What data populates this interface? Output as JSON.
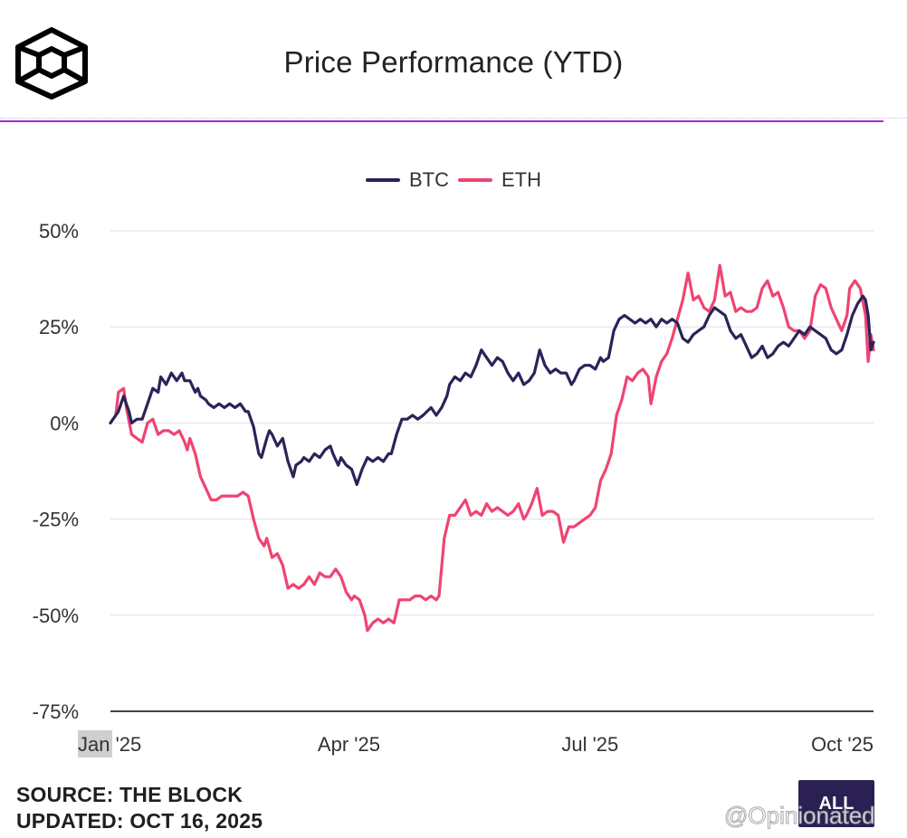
{
  "header": {
    "title": "Price Performance (YTD)"
  },
  "footer": {
    "source": "SOURCE: THE BLOCK",
    "updated": "UPDATED: OCT 16, 2025",
    "range_button": "ALL",
    "watermark": "@Opinionated"
  },
  "colors": {
    "btc": "#2b2358",
    "eth": "#ef4472",
    "accent": "#9b2be0",
    "grid": "#e9e9ef"
  },
  "chart_data": {
    "type": "line",
    "title": "Price Performance (YTD)",
    "xlabel": "",
    "ylabel": "",
    "ylim": [
      -75,
      50
    ],
    "yticks": [
      50,
      25,
      0,
      -25,
      -50,
      -75
    ],
    "ytick_labels": [
      "50%",
      "25%",
      "0%",
      "-25%",
      "-50%",
      "-75%"
    ],
    "x_range_days": [
      0,
      288
    ],
    "xticks": [
      {
        "day": 0,
        "label": "Jan '25"
      },
      {
        "day": 90,
        "label": "Apr '25"
      },
      {
        "day": 181,
        "label": "Jul '25"
      },
      {
        "day": 273,
        "label": "Oct '25"
      }
    ],
    "legend": {
      "position": "top-center",
      "entries": [
        "BTC",
        "ETH"
      ]
    },
    "grid": true,
    "series": [
      {
        "name": "BTC",
        "points": [
          [
            0,
            0
          ],
          [
            3,
            3
          ],
          [
            5,
            7
          ],
          [
            7,
            3
          ],
          [
            8,
            0
          ],
          [
            10,
            1
          ],
          [
            12,
            1
          ],
          [
            14,
            5
          ],
          [
            16,
            9
          ],
          [
            18,
            8
          ],
          [
            19,
            12
          ],
          [
            21,
            10
          ],
          [
            23,
            13
          ],
          [
            25,
            11
          ],
          [
            27,
            13
          ],
          [
            28,
            11
          ],
          [
            30,
            11
          ],
          [
            32,
            8
          ],
          [
            33,
            9
          ],
          [
            34,
            7
          ],
          [
            36,
            6
          ],
          [
            37,
            5
          ],
          [
            39,
            4
          ],
          [
            41,
            5
          ],
          [
            43,
            4
          ],
          [
            45,
            5
          ],
          [
            47,
            4
          ],
          [
            49,
            5
          ],
          [
            51,
            3
          ],
          [
            52,
            3
          ],
          [
            54,
            -1
          ],
          [
            56,
            -8
          ],
          [
            57,
            -9
          ],
          [
            59,
            -4
          ],
          [
            60,
            -2
          ],
          [
            61,
            -3
          ],
          [
            63,
            -6
          ],
          [
            65,
            -4
          ],
          [
            66,
            -7
          ],
          [
            67,
            -10
          ],
          [
            69,
            -14
          ],
          [
            70,
            -11
          ],
          [
            72,
            -10
          ],
          [
            73,
            -9
          ],
          [
            75,
            -10
          ],
          [
            77,
            -8
          ],
          [
            79,
            -9
          ],
          [
            81,
            -7
          ],
          [
            83,
            -6
          ],
          [
            84,
            -8
          ],
          [
            86,
            -11
          ],
          [
            87,
            -9
          ],
          [
            89,
            -11
          ],
          [
            91,
            -12
          ],
          [
            93,
            -16
          ],
          [
            95,
            -12
          ],
          [
            97,
            -9
          ],
          [
            99,
            -10
          ],
          [
            101,
            -9
          ],
          [
            103,
            -10
          ],
          [
            105,
            -8
          ],
          [
            106,
            -8
          ],
          [
            108,
            -3
          ],
          [
            110,
            1
          ],
          [
            112,
            1
          ],
          [
            114,
            2
          ],
          [
            116,
            1
          ],
          [
            118,
            2
          ],
          [
            121,
            4
          ],
          [
            123,
            2
          ],
          [
            125,
            4
          ],
          [
            127,
            7
          ],
          [
            128,
            10
          ],
          [
            130,
            12
          ],
          [
            132,
            11
          ],
          [
            134,
            13
          ],
          [
            136,
            12
          ],
          [
            138,
            15
          ],
          [
            140,
            19
          ],
          [
            142,
            17
          ],
          [
            144,
            15
          ],
          [
            146,
            17
          ],
          [
            148,
            16
          ],
          [
            150,
            13
          ],
          [
            152,
            11
          ],
          [
            154,
            13
          ],
          [
            156,
            10
          ],
          [
            158,
            11
          ],
          [
            160,
            13
          ],
          [
            162,
            19
          ],
          [
            164,
            15
          ],
          [
            166,
            13
          ],
          [
            168,
            14
          ],
          [
            170,
            13
          ],
          [
            172,
            13
          ],
          [
            174,
            10
          ],
          [
            175,
            11
          ],
          [
            177,
            14
          ],
          [
            179,
            15
          ],
          [
            181,
            15
          ],
          [
            183,
            14
          ],
          [
            185,
            17
          ],
          [
            186,
            16
          ],
          [
            188,
            17
          ],
          [
            190,
            24
          ],
          [
            192,
            27
          ],
          [
            194,
            28
          ],
          [
            196,
            27
          ],
          [
            198,
            26
          ],
          [
            200,
            27
          ],
          [
            202,
            26
          ],
          [
            204,
            27
          ],
          [
            206,
            25
          ],
          [
            208,
            27
          ],
          [
            210,
            26
          ],
          [
            212,
            27
          ],
          [
            214,
            26
          ],
          [
            216,
            22
          ],
          [
            218,
            21
          ],
          [
            220,
            23
          ],
          [
            222,
            24
          ],
          [
            224,
            25
          ],
          [
            226,
            28
          ],
          [
            228,
            30
          ],
          [
            230,
            29
          ],
          [
            232,
            28
          ],
          [
            234,
            24
          ],
          [
            236,
            22
          ],
          [
            238,
            23
          ],
          [
            240,
            20
          ],
          [
            242,
            17
          ],
          [
            244,
            18
          ],
          [
            246,
            20
          ],
          [
            248,
            17
          ],
          [
            250,
            18
          ],
          [
            252,
            20
          ],
          [
            254,
            21
          ],
          [
            256,
            20
          ],
          [
            258,
            22
          ],
          [
            260,
            24
          ],
          [
            262,
            23
          ],
          [
            264,
            25
          ],
          [
            266,
            24
          ],
          [
            268,
            23
          ],
          [
            270,
            22
          ],
          [
            272,
            19
          ],
          [
            274,
            18
          ],
          [
            276,
            19
          ],
          [
            278,
            23
          ],
          [
            280,
            28
          ],
          [
            282,
            31
          ],
          [
            284,
            33
          ],
          [
            285,
            32
          ],
          [
            286,
            28
          ],
          [
            287,
            19
          ],
          [
            288,
            21
          ]
        ]
      },
      {
        "name": "ETH",
        "points": [
          [
            0,
            0
          ],
          [
            2,
            2
          ],
          [
            3,
            8
          ],
          [
            5,
            9
          ],
          [
            6,
            4
          ],
          [
            8,
            -3
          ],
          [
            10,
            -4
          ],
          [
            12,
            -5
          ],
          [
            14,
            0
          ],
          [
            16,
            1
          ],
          [
            18,
            -3
          ],
          [
            20,
            -2
          ],
          [
            22,
            -2
          ],
          [
            24,
            -3
          ],
          [
            26,
            -2
          ],
          [
            28,
            -5
          ],
          [
            29,
            -7
          ],
          [
            30,
            -4
          ],
          [
            32,
            -8
          ],
          [
            34,
            -14
          ],
          [
            36,
            -17
          ],
          [
            38,
            -20
          ],
          [
            40,
            -20
          ],
          [
            42,
            -19
          ],
          [
            44,
            -19
          ],
          [
            46,
            -19
          ],
          [
            48,
            -19
          ],
          [
            50,
            -18
          ],
          [
            52,
            -19
          ],
          [
            54,
            -25
          ],
          [
            56,
            -30
          ],
          [
            58,
            -32
          ],
          [
            59,
            -30
          ],
          [
            61,
            -35
          ],
          [
            63,
            -34
          ],
          [
            65,
            -37
          ],
          [
            67,
            -43
          ],
          [
            69,
            -42
          ],
          [
            71,
            -43
          ],
          [
            73,
            -42
          ],
          [
            75,
            -40
          ],
          [
            77,
            -42
          ],
          [
            79,
            -39
          ],
          [
            81,
            -40
          ],
          [
            83,
            -40
          ],
          [
            85,
            -38
          ],
          [
            87,
            -40
          ],
          [
            89,
            -44
          ],
          [
            91,
            -46
          ],
          [
            92,
            -45
          ],
          [
            94,
            -46
          ],
          [
            96,
            -50
          ],
          [
            97,
            -54
          ],
          [
            99,
            -52
          ],
          [
            101,
            -51
          ],
          [
            103,
            -52
          ],
          [
            105,
            -51
          ],
          [
            107,
            -52
          ],
          [
            109,
            -46
          ],
          [
            111,
            -46
          ],
          [
            113,
            -46
          ],
          [
            115,
            -45
          ],
          [
            117,
            -45
          ],
          [
            119,
            -46
          ],
          [
            121,
            -45
          ],
          [
            123,
            -46
          ],
          [
            124,
            -45
          ],
          [
            126,
            -30
          ],
          [
            128,
            -24
          ],
          [
            130,
            -24
          ],
          [
            132,
            -22
          ],
          [
            134,
            -20
          ],
          [
            136,
            -24
          ],
          [
            138,
            -23
          ],
          [
            140,
            -24
          ],
          [
            142,
            -21
          ],
          [
            144,
            -23
          ],
          [
            146,
            -22
          ],
          [
            148,
            -23
          ],
          [
            150,
            -24
          ],
          [
            152,
            -23
          ],
          [
            154,
            -21
          ],
          [
            156,
            -25
          ],
          [
            157,
            -24
          ],
          [
            159,
            -21
          ],
          [
            161,
            -17
          ],
          [
            163,
            -24
          ],
          [
            165,
            -23
          ],
          [
            167,
            -23
          ],
          [
            169,
            -24
          ],
          [
            171,
            -31
          ],
          [
            173,
            -27
          ],
          [
            175,
            -27
          ],
          [
            177,
            -26
          ],
          [
            179,
            -25
          ],
          [
            181,
            -24
          ],
          [
            183,
            -22
          ],
          [
            185,
            -15
          ],
          [
            187,
            -12
          ],
          [
            189,
            -8
          ],
          [
            191,
            2
          ],
          [
            193,
            6
          ],
          [
            195,
            12
          ],
          [
            197,
            11
          ],
          [
            199,
            13
          ],
          [
            201,
            14
          ],
          [
            203,
            12
          ],
          [
            204,
            5
          ],
          [
            206,
            12
          ],
          [
            208,
            16
          ],
          [
            210,
            18
          ],
          [
            212,
            22
          ],
          [
            214,
            27
          ],
          [
            216,
            32
          ],
          [
            218,
            39
          ],
          [
            220,
            32
          ],
          [
            222,
            33
          ],
          [
            224,
            30
          ],
          [
            226,
            29
          ],
          [
            228,
            32
          ],
          [
            230,
            41
          ],
          [
            232,
            33
          ],
          [
            234,
            34
          ],
          [
            236,
            29
          ],
          [
            238,
            30
          ],
          [
            240,
            29
          ],
          [
            242,
            29
          ],
          [
            244,
            30
          ],
          [
            246,
            35
          ],
          [
            248,
            37
          ],
          [
            250,
            33
          ],
          [
            252,
            34
          ],
          [
            254,
            30
          ],
          [
            256,
            25
          ],
          [
            258,
            24
          ],
          [
            260,
            24
          ],
          [
            262,
            22
          ],
          [
            264,
            24
          ],
          [
            266,
            33
          ],
          [
            268,
            36
          ],
          [
            270,
            35
          ],
          [
            272,
            30
          ],
          [
            274,
            27
          ],
          [
            276,
            24
          ],
          [
            278,
            28
          ],
          [
            279,
            35
          ],
          [
            281,
            37
          ],
          [
            283,
            35
          ],
          [
            285,
            28
          ],
          [
            286,
            16
          ],
          [
            287,
            23
          ],
          [
            288,
            19
          ]
        ]
      }
    ]
  }
}
